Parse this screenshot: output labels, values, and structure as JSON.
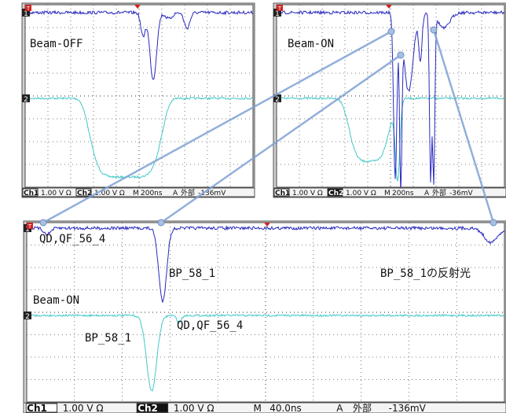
{
  "panels": [
    {
      "label": "Beam-OFF",
      "ch1_marker": "1",
      "ch2_marker": "2",
      "trigger_marker": "T",
      "status": {
        "ch1": "Ch1",
        "ch1_scale": "1.00 V Ω",
        "ch2": "Ch2",
        "ch2_scale": "1.00 V Ω",
        "timebase_label": "M",
        "timebase": "200ns",
        "trigger_label": "A",
        "trigger_source": "外部",
        "trigger_level": "-136mV"
      }
    },
    {
      "label": "Beam-ON",
      "ch1_marker": "1",
      "ch2_marker": "2",
      "trigger_marker": "T",
      "status": {
        "ch1": "Ch1",
        "ch1_scale": "1.00 V Ω",
        "ch2": "Ch2",
        "ch2_scale": "1.00 V Ω",
        "timebase_label": "M",
        "timebase": "200ns",
        "trigger_label": "A",
        "trigger_source": "外部",
        "trigger_level": "-36mV"
      }
    },
    {
      "label": "Beam-ON",
      "ch1_marker": "1",
      "ch2_marker": "2",
      "trigger_marker": "T",
      "status": {
        "ch1": "Ch1",
        "ch1_scale": "1.00 V Ω",
        "ch2": "Ch2",
        "ch2_scale": "1.00 V Ω",
        "timebase_label": "M",
        "timebase": "40.0ns",
        "trigger_label": "A",
        "trigger_source": "外部",
        "trigger_level": "-136mV"
      },
      "annotations": [
        "QD,QF_56_4",
        "BP_58_1",
        "BP_58_1の反射光",
        "BP_58_1",
        "QD,QF_56_4"
      ]
    }
  ]
}
